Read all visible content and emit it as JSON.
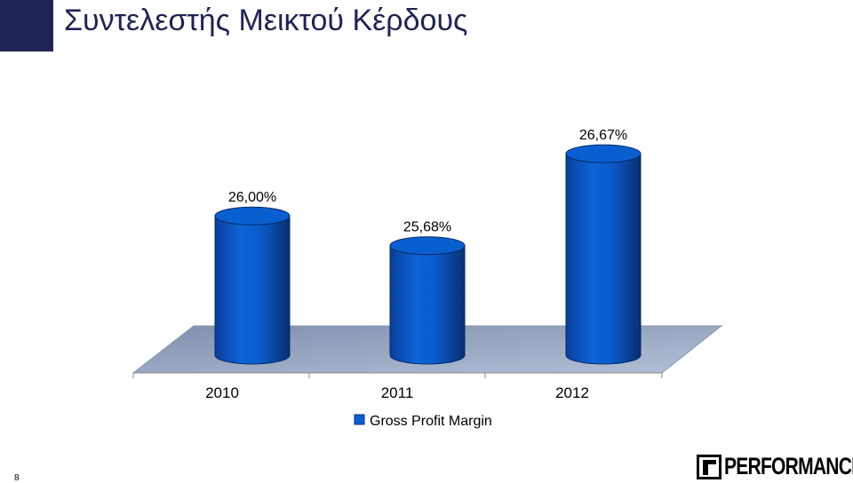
{
  "slide": {
    "title": "Συντελεστής Μεικτού Κέρδους",
    "page_number": "8",
    "logo_text": "PERFORMANCE"
  },
  "colors": {
    "title": "#1f2454",
    "title_block": "#1f2454",
    "bar": "#0a5fd0",
    "bar_dark": "#07347a",
    "floor": "#9aa9c4"
  },
  "chart_data": {
    "type": "bar",
    "style": "3d-cylinder",
    "categories": [
      "2010",
      "2011",
      "2012"
    ],
    "series": [
      {
        "name": "Gross Profit Margin",
        "values": [
          26.0,
          25.68,
          26.67
        ]
      }
    ],
    "data_labels": [
      "26,00%",
      "25,68%",
      "26,67%"
    ],
    "legend": {
      "position": "bottom",
      "entries": [
        "Gross Profit Margin"
      ]
    },
    "ylim": [
      25.4,
      26.7
    ],
    "grid": false
  }
}
